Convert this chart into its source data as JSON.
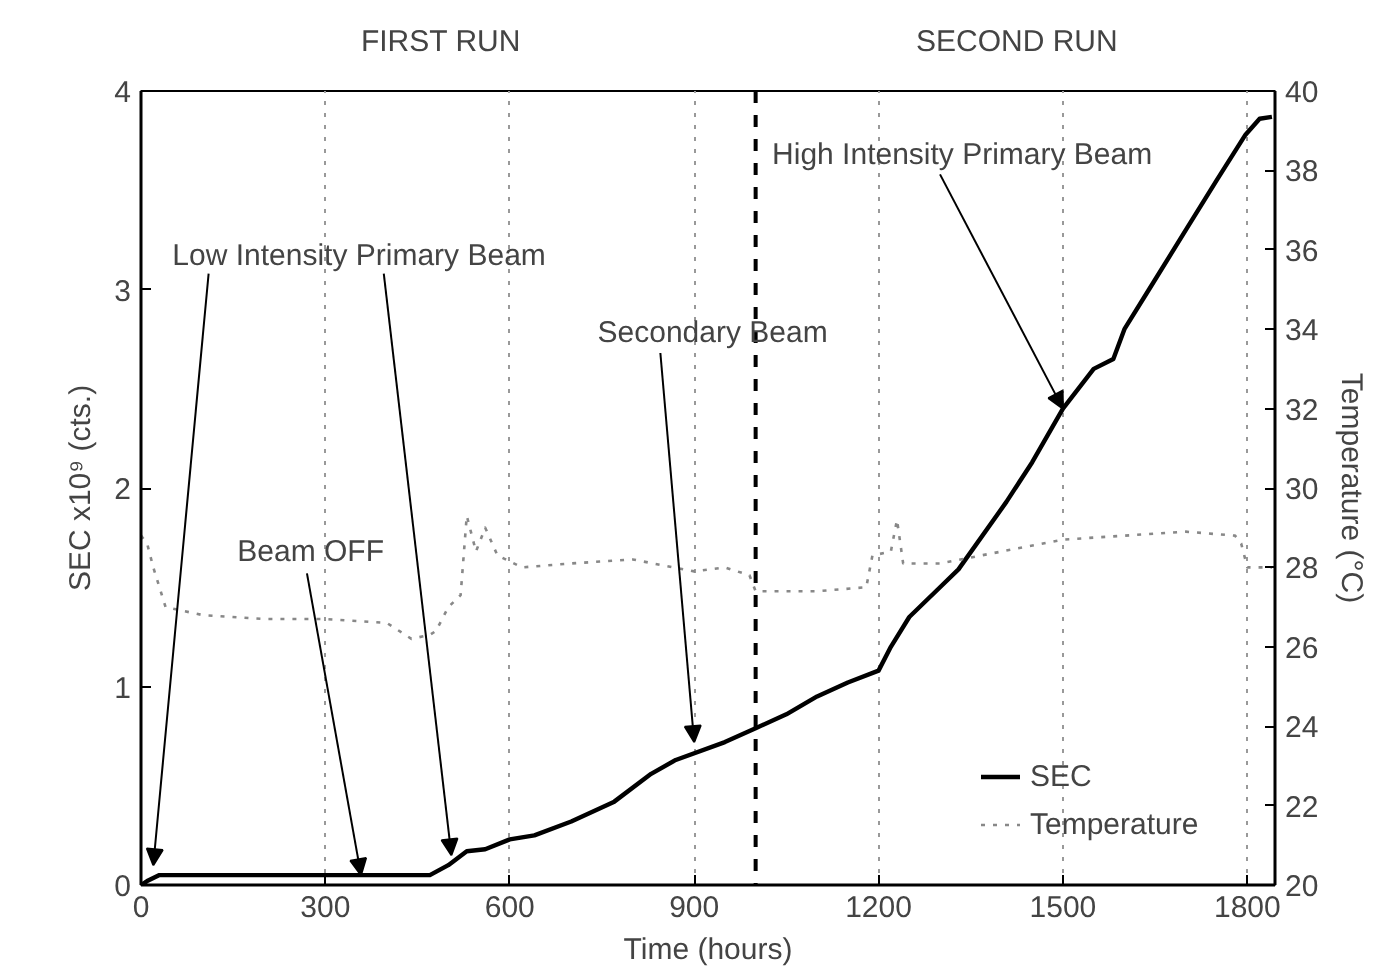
{
  "chart_data": {
    "type": "line",
    "xlabel": "Time (hours)",
    "ylabel": "SEC x10⁹ (cts.)",
    "y2label": "Temperature (°C)",
    "xlim": [
      0,
      1845
    ],
    "xticks": [
      0,
      300,
      600,
      900,
      1200,
      1500,
      1800
    ],
    "ylim": [
      0,
      4
    ],
    "yticks": [
      0,
      1,
      2,
      3,
      4
    ],
    "y2lim": [
      20,
      40
    ],
    "y2ticks": [
      20,
      22,
      24,
      26,
      28,
      30,
      32,
      34,
      36,
      38,
      40
    ],
    "grid": "x",
    "legend": "bottom right",
    "ref_lines": [
      {
        "axis": "x",
        "value": 1000,
        "color": "#000000",
        "line_style": "dashed"
      }
    ],
    "annotations": [
      "FIRST RUN",
      "SECOND RUN",
      "Low Intensity Primary Beam",
      {
        "text": "Beam OFF",
        "x": 358,
        "y": 0.05
      },
      {
        "text": "Secondary Beam",
        "x": 900,
        "y": 0.72
      },
      {
        "text": "High Intensity Primary Beam",
        "x": 1500,
        "y": 2.4
      }
    ],
    "series": [
      {
        "name": "SEC",
        "color": "#000000",
        "line_style": "solid",
        "x": [
          0,
          10,
          30,
          470,
          500,
          530,
          560,
          600,
          640,
          700,
          770,
          830,
          870,
          950,
          1000,
          1050,
          1100,
          1150,
          1200,
          1220,
          1250,
          1300,
          1330,
          1408,
          1450,
          1500,
          1550,
          1582,
          1600,
          1640,
          1700,
          1750,
          1797,
          1820,
          1840
        ],
        "values": [
          0,
          0.02,
          0.05,
          0.05,
          0.1,
          0.17,
          0.18,
          0.23,
          0.25,
          0.32,
          0.42,
          0.56,
          0.63,
          0.72,
          0.79,
          0.86,
          0.95,
          1.02,
          1.08,
          1.2,
          1.35,
          1.5,
          1.59,
          1.93,
          2.13,
          2.4,
          2.6,
          2.65,
          2.8,
          3.0,
          3.3,
          3.55,
          3.78,
          3.86,
          3.87
        ]
      },
      {
        "name": "Temperature",
        "color": "#888888",
        "line_style": "dotted",
        "axis": "y2",
        "x": [
          0,
          10,
          20,
          40,
          100,
          200,
          300,
          400,
          440,
          470,
          480,
          500,
          520,
          530,
          545,
          560,
          580,
          620,
          700,
          800,
          900,
          950,
          990,
          1000,
          1020,
          1100,
          1180,
          1190,
          1220,
          1230,
          1240,
          1300,
          1400,
          1500,
          1600,
          1700,
          1780,
          1790,
          1800,
          1840
        ],
        "values": [
          28.8,
          28.6,
          28.0,
          27.0,
          26.8,
          26.7,
          26.7,
          26.6,
          26.2,
          26.3,
          26.4,
          27.0,
          27.3,
          29.3,
          28.4,
          29.0,
          28.3,
          28.0,
          28.1,
          28.2,
          27.9,
          28.0,
          27.8,
          27.4,
          27.4,
          27.4,
          27.5,
          28.3,
          28.4,
          29.2,
          28.1,
          28.1,
          28.4,
          28.7,
          28.8,
          28.9,
          28.8,
          28.6,
          28.0,
          28.0
        ]
      }
    ]
  }
}
